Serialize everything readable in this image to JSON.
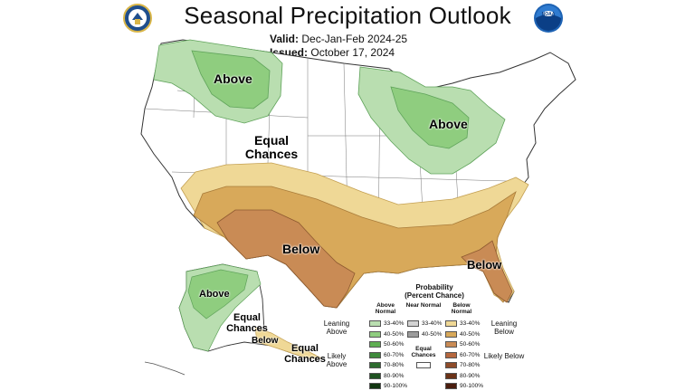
{
  "header": {
    "title": "Seasonal Precipitation Outlook",
    "valid_label": "Valid:",
    "valid_value": "Dec-Jan-Feb 2024-25",
    "issued_label": "Issued:",
    "issued_value": "October 17, 2024"
  },
  "logos": {
    "left": "doc-seal-icon",
    "right_text": "NOAA"
  },
  "map_labels": {
    "above_nw": "Above",
    "above_gl": "Above",
    "equal_center_1": "Equal",
    "equal_center_2": "Chances",
    "below_tx": "Below",
    "below_fl": "Below",
    "ak_above": "Above",
    "ak_equal_1": "Equal",
    "ak_equal_2": "Chances",
    "ak_below": "Below",
    "ak_equal2_1": "Equal",
    "ak_equal2_2": "Chances"
  },
  "legend": {
    "title_1": "Probability",
    "title_2": "(Percent Chance)",
    "col_above": "Above Normal",
    "col_near": "Near Normal",
    "col_below": "Below Normal",
    "leaning_above": "Leaning Above",
    "likely_above": "Likely Above",
    "leaning_below": "Leaning Below",
    "likely_below": "Likely Below",
    "equal_chances": "Equal Chances",
    "above_rows": [
      {
        "label": "33-40%",
        "color": "#b9deb0"
      },
      {
        "label": "40-50%",
        "color": "#8fcd7f"
      },
      {
        "label": "50-60%",
        "color": "#5fae52"
      },
      {
        "label": "60-70%",
        "color": "#3e8a3c"
      },
      {
        "label": "70-80%",
        "color": "#2d6b2e"
      },
      {
        "label": "80-90%",
        "color": "#1f5221"
      },
      {
        "label": "90-100%",
        "color": "#113510"
      }
    ],
    "near_rows": [
      {
        "label": "33-40%",
        "color": "#d3d3d3"
      },
      {
        "label": "40-50%",
        "color": "#9c9c9c"
      }
    ],
    "below_rows": [
      {
        "label": "33-40%",
        "color": "#efd896"
      },
      {
        "label": "40-50%",
        "color": "#d8a95a"
      },
      {
        "label": "50-60%",
        "color": "#c98b55"
      },
      {
        "label": "60-70%",
        "color": "#b5673e"
      },
      {
        "label": "70-80%",
        "color": "#8e4c2a"
      },
      {
        "label": "80-90%",
        "color": "#6b3217"
      },
      {
        "label": "90-100%",
        "color": "#4a1d0e"
      }
    ]
  },
  "colors": {
    "above_33": "#b9deb0",
    "above_40": "#8fcd7f",
    "below_33": "#efd896",
    "below_40": "#d8a95a",
    "below_50": "#c98b55"
  }
}
